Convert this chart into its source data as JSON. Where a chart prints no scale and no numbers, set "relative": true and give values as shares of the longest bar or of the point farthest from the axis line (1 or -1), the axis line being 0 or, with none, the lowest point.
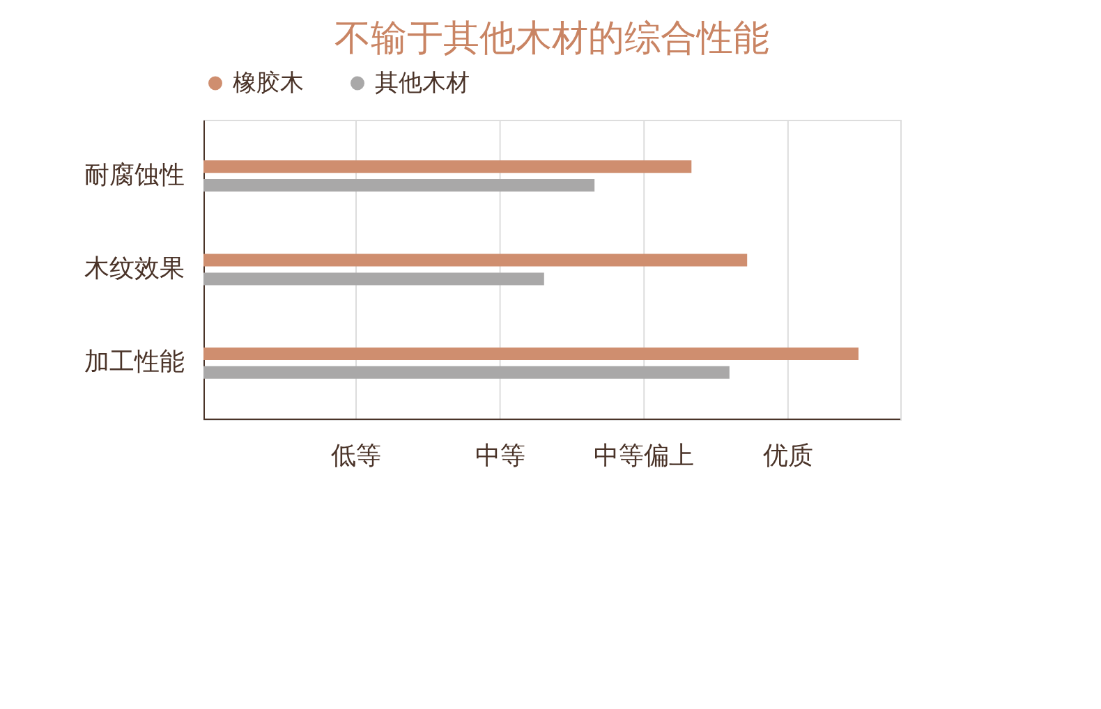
{
  "chart_data": {
    "type": "bar",
    "orientation": "horizontal",
    "relative": true,
    "title": "不输于其他木材的综合性能",
    "categories": [
      "耐腐蚀性",
      "木纹效果",
      "加工性能"
    ],
    "series": [
      {
        "name": "橡胶木",
        "color": "#cf8e6f",
        "values": [
          0.745,
          0.83,
          1
        ]
      },
      {
        "name": "其他木材",
        "color": "#a9a8a8",
        "values": [
          0.597,
          0.52,
          0.803
        ]
      }
    ],
    "annotations": [
      "低等",
      "中等",
      "中等偏上",
      "优质"
    ],
    "legend": "top"
  }
}
